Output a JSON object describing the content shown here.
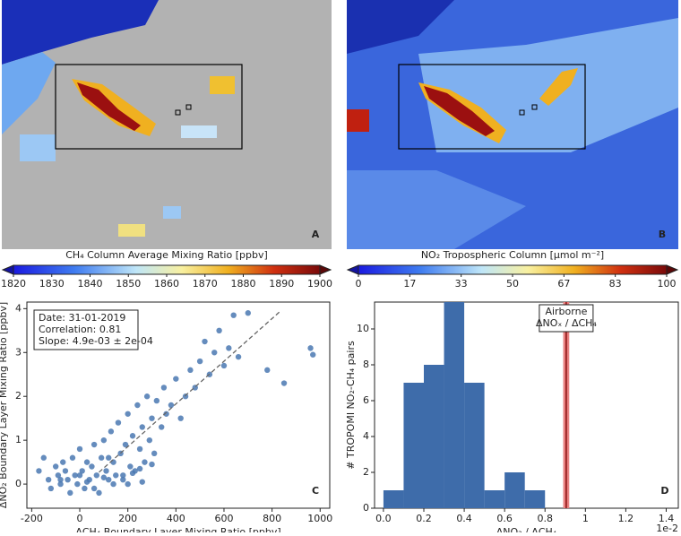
{
  "chart_data": [
    {
      "type": "map",
      "panel": "A",
      "colorbar": {
        "label": "CH₄ Column Average Mixing Ratio [ppbv]",
        "lim": [
          1820,
          1900
        ],
        "ticks": [
          1820,
          1830,
          1840,
          1850,
          1860,
          1870,
          1880,
          1890,
          1900
        ]
      }
    },
    {
      "type": "map",
      "panel": "B",
      "colorbar": {
        "label": "NO₂ Tropospheric Column [µmol m⁻²]",
        "lim": [
          0,
          100
        ],
        "ticks": [
          0,
          {
            "value": 16.67,
            "label": "17"
          },
          {
            "value": 33.33,
            "label": "33"
          },
          50,
          {
            "value": 66.67,
            "label": "67"
          },
          {
            "value": 83.33,
            "label": "83"
          },
          100
        ]
      }
    },
    {
      "type": "scatter",
      "panel": "C",
      "xlabel": "ΔCH₄ Boundary Layer Mixing Ratio [ppbv]",
      "ylabel": "ΔNO₂ Boundary Layer Mixing Ratio [ppbv]",
      "xlim": [
        -220,
        1040
      ],
      "ylim": [
        -0.55,
        4.15
      ],
      "xticks": [
        -200,
        0,
        200,
        400,
        600,
        800,
        1000
      ],
      "yticks": [
        0,
        1,
        2,
        3,
        4
      ],
      "color": "#4a78b2",
      "annotation": [
        "Date: 31-01-2019",
        "Correlation: 0.81",
        "Slope: 4.9e-03 ± 2e-04"
      ],
      "fit_line": {
        "x": [
          80,
          830
        ],
        "y": [
          0.27,
          3.92
        ]
      },
      "x": [
        -170,
        -150,
        -130,
        -120,
        -100,
        -90,
        -80,
        -70,
        -60,
        -50,
        -40,
        -30,
        -20,
        -10,
        0,
        10,
        20,
        30,
        40,
        50,
        60,
        70,
        80,
        90,
        100,
        110,
        120,
        130,
        140,
        150,
        160,
        170,
        180,
        190,
        200,
        210,
        220,
        230,
        240,
        250,
        260,
        270,
        280,
        290,
        300,
        310,
        320,
        340,
        350,
        360,
        380,
        400,
        420,
        440,
        460,
        480,
        500,
        520,
        540,
        560,
        580,
        600,
        620,
        640,
        660,
        700,
        780,
        850,
        960,
        970,
        30,
        60,
        100,
        140,
        180,
        220,
        260,
        300,
        -80,
        0,
        120,
        200,
        250
      ],
      "y": [
        0.3,
        0.6,
        0.1,
        -0.1,
        0.4,
        0.2,
        0.0,
        0.5,
        0.3,
        0.1,
        -0.2,
        0.6,
        0.2,
        0.0,
        0.8,
        0.3,
        -0.1,
        0.5,
        0.1,
        0.4,
        0.9,
        0.2,
        -0.2,
        0.6,
        1.0,
        0.3,
        0.1,
        1.2,
        0.5,
        0.2,
        1.4,
        0.7,
        0.1,
        0.9,
        1.6,
        0.4,
        1.1,
        0.3,
        1.8,
        0.8,
        1.3,
        0.5,
        2.0,
        1.0,
        1.5,
        0.7,
        1.9,
        1.3,
        2.2,
        1.6,
        1.8,
        2.4,
        1.5,
        2.0,
        2.6,
        2.2,
        2.8,
        3.25,
        2.5,
        3.0,
        3.5,
        2.7,
        3.1,
        3.85,
        2.9,
        3.9,
        2.6,
        2.3,
        3.1,
        2.95,
        0.05,
        -0.1,
        0.15,
        0.0,
        0.2,
        0.25,
        0.05,
        0.45,
        0.1,
        0.2,
        0.6,
        0.0,
        0.35
      ]
    },
    {
      "type": "histogram",
      "panel": "D",
      "xlabel": "ΔNO₂ / ΔCH₄",
      "ylabel": "# TROPOMI NO₂-CH₄ pairs",
      "x_offset_label": "1e-2",
      "xlim": [
        -0.044,
        1.46
      ],
      "ylim": [
        0,
        11.5
      ],
      "xticks": [
        {
          "value": 0,
          "label": "0.0"
        },
        0.2,
        0.4,
        0.6,
        0.8,
        1,
        1.2,
        1.4
      ],
      "yticks": [
        0,
        2,
        4,
        6,
        8,
        10
      ],
      "color": "#3e6caa",
      "bins": [
        0,
        0.1,
        0.2,
        0.3,
        0.4,
        0.5,
        0.6,
        0.7,
        0.8
      ],
      "counts": [
        1,
        7,
        8,
        12,
        7,
        1,
        2,
        1
      ],
      "reference": {
        "x": [
          0.89,
          0.92
        ],
        "label": [
          "Airborne",
          "ΔNOₓ / ΔCH₄"
        ]
      }
    }
  ]
}
